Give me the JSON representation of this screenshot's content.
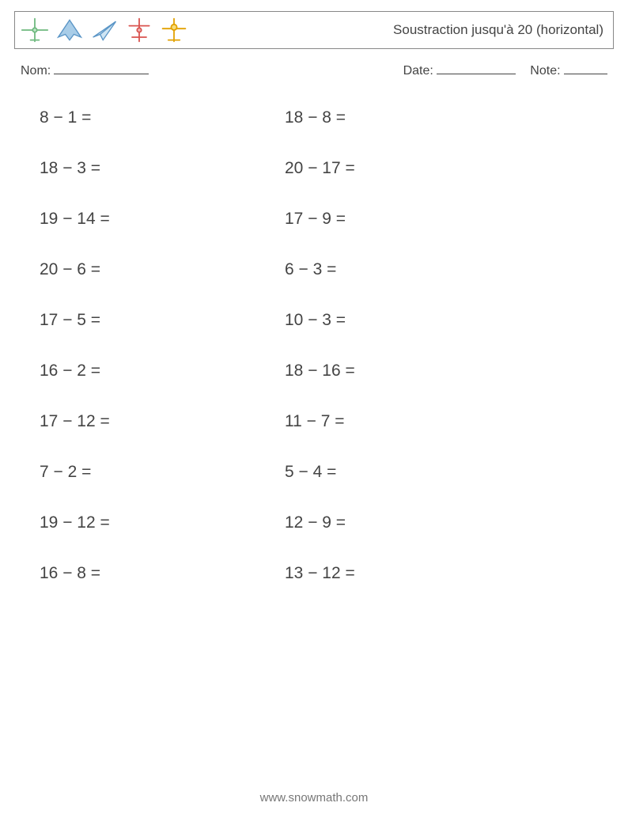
{
  "header": {
    "title": "Soustraction jusqu'à 20 (horizontal)"
  },
  "icons": [
    {
      "name": "plane-front-icon",
      "stroke": "#6fb97f",
      "fill": "#bfe6c7"
    },
    {
      "name": "stealth-plane-icon",
      "stroke": "#5a95c6",
      "fill": "#a9cde8"
    },
    {
      "name": "paper-plane-icon",
      "stroke": "#5a95c6",
      "fill": "#cfe5f3"
    },
    {
      "name": "biplane-top-icon",
      "stroke": "#d9534f",
      "fill": "#f3b7b5"
    },
    {
      "name": "plane-yellow-icon",
      "stroke": "#e2a100",
      "fill": "#f7dd7b"
    }
  ],
  "meta": {
    "name_label": "Nom:",
    "date_label": "Date:",
    "note_label": "Note:"
  },
  "problems": {
    "operator": "−",
    "equals": "=",
    "col1": [
      {
        "a": 8,
        "b": 1
      },
      {
        "a": 18,
        "b": 3
      },
      {
        "a": 19,
        "b": 14
      },
      {
        "a": 20,
        "b": 6
      },
      {
        "a": 17,
        "b": 5
      },
      {
        "a": 16,
        "b": 2
      },
      {
        "a": 17,
        "b": 12
      },
      {
        "a": 7,
        "b": 2
      },
      {
        "a": 19,
        "b": 12
      },
      {
        "a": 16,
        "b": 8
      }
    ],
    "col2": [
      {
        "a": 18,
        "b": 8
      },
      {
        "a": 20,
        "b": 17
      },
      {
        "a": 17,
        "b": 9
      },
      {
        "a": 6,
        "b": 3
      },
      {
        "a": 10,
        "b": 3
      },
      {
        "a": 18,
        "b": 16
      },
      {
        "a": 11,
        "b": 7
      },
      {
        "a": 5,
        "b": 4
      },
      {
        "a": 12,
        "b": 9
      },
      {
        "a": 13,
        "b": 12
      }
    ]
  },
  "footer": "www.snowmath.com"
}
